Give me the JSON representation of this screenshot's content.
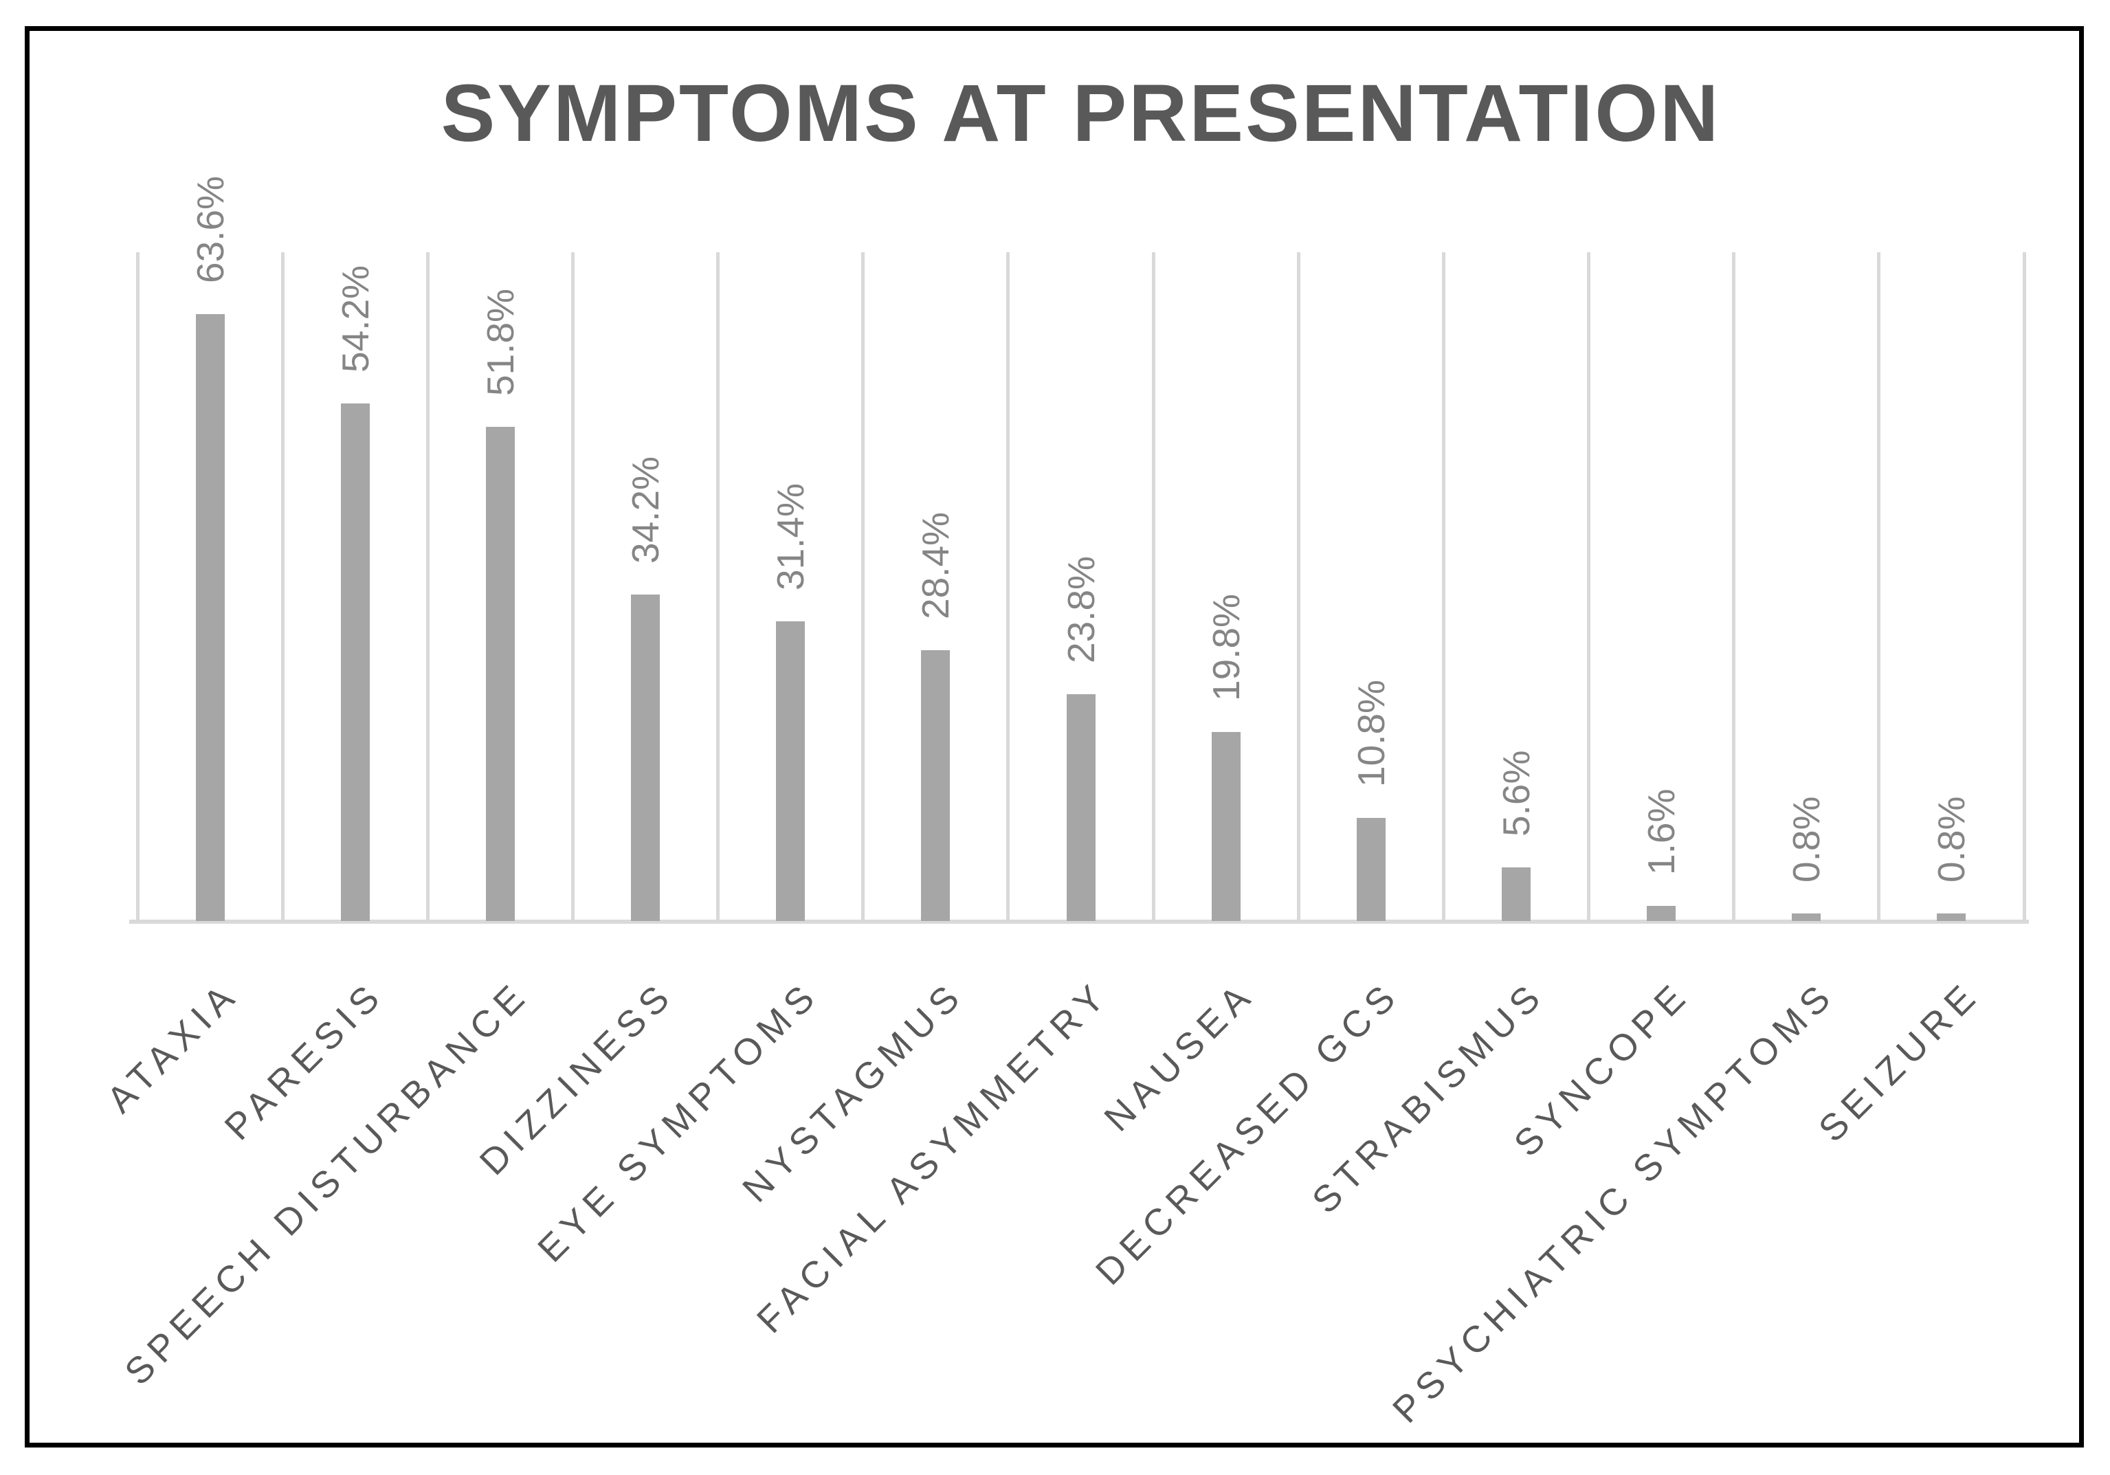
{
  "figure": {
    "background": "#ffffff",
    "border_color": "#000000"
  },
  "chart_data": {
    "type": "bar",
    "title": "SYMPTOMS AT PRESENTATION",
    "xlabel": "",
    "ylabel": "",
    "categories": [
      "ATAXIA",
      "PARESIS",
      "SPEECH DISTURBANCE",
      "DIZZINESS",
      "EYE SYMPTOMS",
      "NYSTAGMUS",
      "FACIAL ASYMMETRY",
      "NAUSEA",
      "DECREASED GCS",
      "STRABISMUS",
      "SYNCOPE",
      "PSYCHIATRIC SYMPTOMS",
      "SEIZURE"
    ],
    "values": [
      63.6,
      54.2,
      51.8,
      34.2,
      31.4,
      28.4,
      23.8,
      19.8,
      10.8,
      5.6,
      1.6,
      0.8,
      0.8
    ],
    "value_labels": [
      "63.6%",
      "54.2%",
      "51.8%",
      "34.2%",
      "31.4%",
      "28.4%",
      "23.8%",
      "19.8%",
      "10.8%",
      "5.6%",
      "1.6%",
      "0.8%",
      "0.8%"
    ],
    "ylim": [
      0,
      70
    ],
    "grid": "vertical-category-gridlines",
    "legend_position": "none",
    "data_label_rotation_deg": 90,
    "category_label_rotation_deg": 45,
    "colors": {
      "bar": "#a6a6a6",
      "gridline": "#d9d9d9",
      "axis_line": "#d9d9d9",
      "title": "#595959",
      "value_label": "#858585",
      "category_label": "#595959"
    }
  }
}
